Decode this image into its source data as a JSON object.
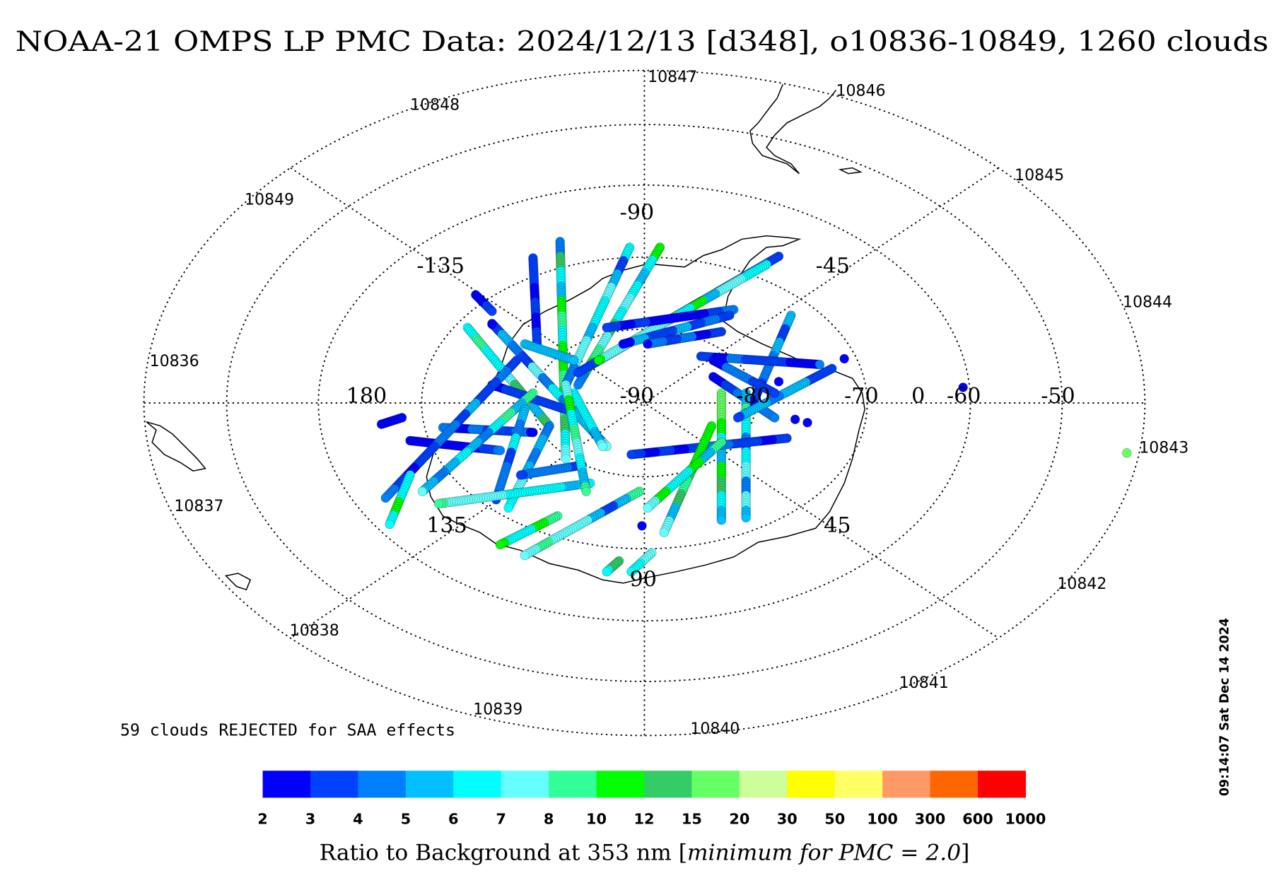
{
  "title": "NOAA-21 OMPS LP PMC Data: 2024/12/13 [d348], o10836-10849, 1260 clouds",
  "timestamp": "09:14:07 Sat Dec 14 2024",
  "rejected_note": "59 clouds REJECTED for SAA effects",
  "map": {
    "projection": "south polar stereographic",
    "center_label": "-90",
    "longitude_labels": {
      "top": "-90",
      "top_right": "-45",
      "right": "0",
      "bottom_right": "45",
      "bottom": "90",
      "bottom_left": "135",
      "left": "180",
      "top_left": "-135"
    },
    "latitude_labels": [
      "-80",
      "-70",
      "-60",
      "-50"
    ],
    "orbit_labels": [
      "10836",
      "10837",
      "10838",
      "10839",
      "10840",
      "10841",
      "10842",
      "10843",
      "10844",
      "10845",
      "10846",
      "10847",
      "10848",
      "10849"
    ]
  },
  "colorbar": {
    "label_main": "Ratio to Background at 353 nm ",
    "label_italic": "minimum for PMC = 2.0",
    "ticks": [
      "2",
      "3",
      "4",
      "5",
      "6",
      "7",
      "8",
      "10",
      "12",
      "15",
      "20",
      "30",
      "50",
      "100",
      "300",
      "600",
      "1000"
    ],
    "colors": [
      "#0000ff",
      "#0040ff",
      "#0080ff",
      "#00c0ff",
      "#00ffff",
      "#66ffff",
      "#33ff99",
      "#00ff00",
      "#33cc66",
      "#66ff66",
      "#ccff99",
      "#ffff00",
      "#ffff66",
      "#ff9966",
      "#ff6600",
      "#ff0000"
    ]
  }
}
